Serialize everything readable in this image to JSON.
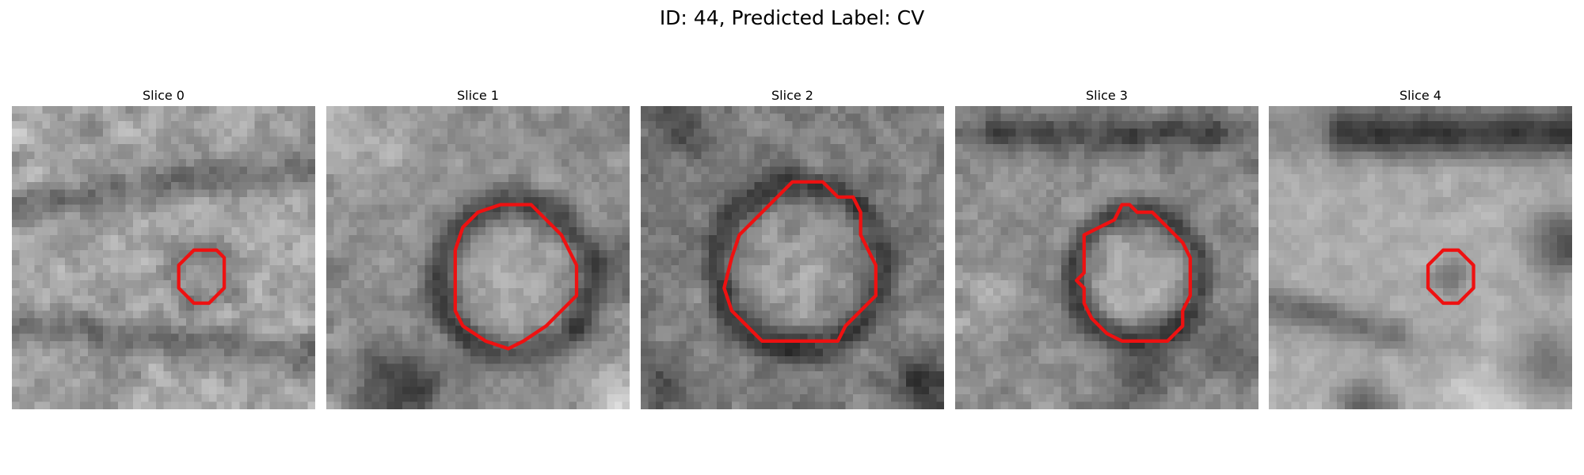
{
  "figure": {
    "title": "ID: 44, Predicted Label: CV",
    "contour_color": "#ee1111"
  },
  "slices": [
    {
      "label": "Slice 0",
      "description": "granular grey texture with a small round dark vesicle outlined in red",
      "contour": [
        [
          25,
          19
        ],
        [
          27,
          19
        ],
        [
          28,
          20
        ],
        [
          28,
          24
        ],
        [
          26,
          26
        ],
        [
          24,
          26
        ],
        [
          22,
          24
        ],
        [
          22,
          21
        ],
        [
          24,
          19
        ]
      ]
    },
    {
      "label": "Slice 1",
      "description": "large round light vesicle with dark rim, outlined in red",
      "contour": [
        [
          23,
          13
        ],
        [
          27,
          13
        ],
        [
          29,
          15
        ],
        [
          31,
          17
        ],
        [
          32,
          19
        ],
        [
          33,
          21
        ],
        [
          33,
          25
        ],
        [
          31,
          27
        ],
        [
          29,
          29
        ],
        [
          26,
          31
        ],
        [
          24,
          32
        ],
        [
          21,
          31
        ],
        [
          18,
          29
        ],
        [
          17,
          27
        ],
        [
          17,
          19
        ],
        [
          18,
          16
        ],
        [
          20,
          14
        ]
      ]
    },
    {
      "label": "Slice 2",
      "description": "large round textured vesicle with dark membrane, outlined in red",
      "contour": [
        [
          20,
          10
        ],
        [
          24,
          10
        ],
        [
          26,
          12
        ],
        [
          28,
          12
        ],
        [
          29,
          14
        ],
        [
          29,
          17
        ],
        [
          30,
          19
        ],
        [
          31,
          21
        ],
        [
          31,
          25
        ],
        [
          29,
          27
        ],
        [
          27,
          29
        ],
        [
          26,
          31
        ],
        [
          16,
          31
        ],
        [
          14,
          29
        ],
        [
          12,
          27
        ],
        [
          11,
          24
        ],
        [
          12,
          20
        ],
        [
          13,
          17
        ],
        [
          15,
          15
        ],
        [
          17,
          13
        ],
        [
          18,
          12
        ]
      ]
    },
    {
      "label": "Slice 3",
      "description": "round vesicle with bright interior and dark ring, outlined in red",
      "contour": [
        [
          23,
          13
        ],
        [
          24,
          14
        ],
        [
          26,
          14
        ],
        [
          28,
          16
        ],
        [
          30,
          18
        ],
        [
          31,
          20
        ],
        [
          31,
          25
        ],
        [
          30,
          27
        ],
        [
          30,
          29
        ],
        [
          29,
          30
        ],
        [
          28,
          31
        ],
        [
          22,
          31
        ],
        [
          20,
          30
        ],
        [
          18,
          28
        ],
        [
          17,
          26
        ],
        [
          17,
          24
        ],
        [
          16,
          23
        ],
        [
          17,
          22
        ],
        [
          17,
          17
        ],
        [
          19,
          16
        ],
        [
          21,
          15
        ],
        [
          22,
          13
        ]
      ]
    },
    {
      "label": "Slice 4",
      "description": "light cross-shaped region with a small dark vesicle outlined in red",
      "contour": [
        [
          24,
          19
        ],
        [
          25,
          19
        ],
        [
          26,
          20
        ],
        [
          27,
          21
        ],
        [
          27,
          24
        ],
        [
          26,
          25
        ],
        [
          25,
          26
        ],
        [
          23,
          26
        ],
        [
          22,
          25
        ],
        [
          21,
          24
        ],
        [
          21,
          21
        ],
        [
          22,
          20
        ],
        [
          23,
          19
        ]
      ]
    }
  ]
}
